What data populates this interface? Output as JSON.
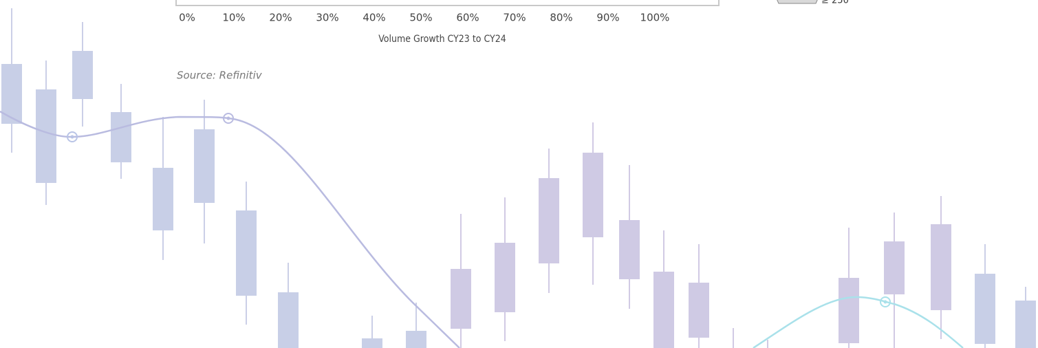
{
  "axis": {
    "ticks": [
      "0%",
      "10%",
      "20%",
      "30%",
      "40%",
      "50%",
      "60%",
      "70%",
      "80%",
      "90%",
      "100%"
    ],
    "title": "Volume Growth CY23 to CY24"
  },
  "source": "Source: Refinitiv",
  "legend": {
    "label": "≥ 250"
  }
}
